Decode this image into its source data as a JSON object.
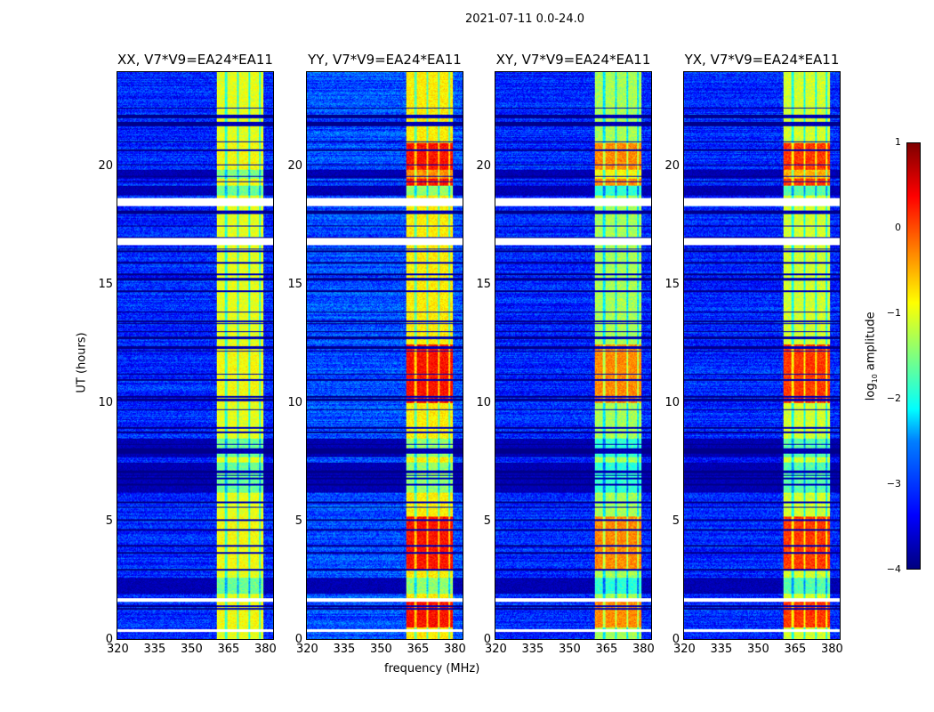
{
  "chart_data": {
    "type": "heatmap",
    "title": "2021-07-11 0.0-24.0",
    "xlabel": "frequency (MHz)",
    "ylabel": "UT (hours)",
    "xlim": [
      320,
      384
    ],
    "ylim": [
      0,
      24
    ],
    "xticks": [
      "320",
      "335",
      "350",
      "365",
      "380"
    ],
    "yticks": [
      "0",
      "5",
      "10",
      "15",
      "20"
    ],
    "colorbar": {
      "label": "log10 amplitude",
      "label_main": "log",
      "label_sub": "10",
      "label_rest": " amplitude",
      "range": [
        -4,
        1
      ],
      "ticks": [
        "1",
        "0",
        "−1",
        "−2",
        "−3",
        "−4"
      ],
      "colormap": "jet"
    },
    "panels": [
      {
        "title": "XX, V7*V9=EA24*EA11",
        "background_level": -3.2,
        "band_level": -1.0,
        "peak_level": -0.9
      },
      {
        "title": "YY, V7*V9=EA24*EA11",
        "background_level": -3.0,
        "band_level": -0.8,
        "peak_level": 0.3
      },
      {
        "title": "XY, V7*V9=EA24*EA11",
        "background_level": -3.2,
        "band_level": -1.3,
        "peak_level": -0.3
      },
      {
        "title": "YX, V7*V9=EA24*EA11",
        "background_level": -3.2,
        "band_level": -1.1,
        "peak_level": 0.1
      }
    ],
    "band_mhz": [
      360.5,
      380
    ],
    "subband_edges_mhz": [
      364.5,
      369.3,
      374,
      378.5
    ],
    "bright_hours": [
      [
        0.5,
        1.6
      ],
      [
        3,
        5.2
      ],
      [
        10,
        12.5
      ],
      [
        19.2,
        21
      ]
    ],
    "flagged_white_hours": [
      [
        0.32,
        0.45
      ],
      [
        1.6,
        1.75
      ],
      [
        16.7,
        17.0
      ],
      [
        18.35,
        18.7
      ]
    ],
    "flagged_low_hours": [
      [
        1.95,
        2.6
      ],
      [
        6.2,
        7.5
      ],
      [
        7.7,
        8.5
      ],
      [
        18.8,
        19.2
      ],
      [
        19.5,
        19.9
      ]
    ]
  }
}
